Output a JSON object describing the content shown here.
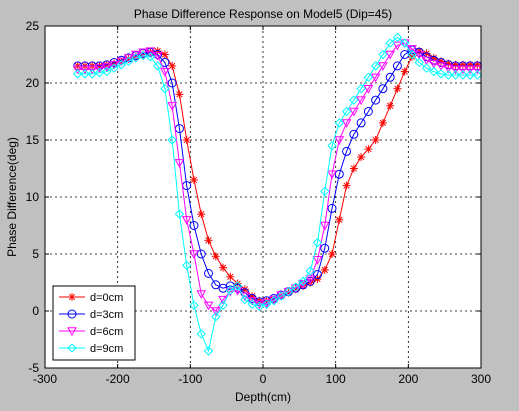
{
  "chart_data": {
    "type": "line",
    "title": "Phase Difference Response on Model5 (Dip=45)",
    "xlabel": "Depth(cm)",
    "ylabel": "Phase Difference(deg)",
    "xlim": [
      -300,
      300
    ],
    "ylim": [
      -5,
      25
    ],
    "xticks": [
      -300,
      -200,
      -100,
      0,
      100,
      200,
      300
    ],
    "yticks": [
      -5,
      0,
      5,
      10,
      15,
      20,
      25
    ],
    "grid": true,
    "legend_position": "bottom-left",
    "colors": {
      "background": "#c0c0c0",
      "axes_background": "#ffffff",
      "grid": "#000000"
    },
    "series": [
      {
        "name": "d=0cm",
        "color": "#ff0000",
        "marker": "asterisk",
        "x": [
          -255,
          -245,
          -235,
          -225,
          -215,
          -205,
          -195,
          -185,
          -175,
          -165,
          -155,
          -145,
          -135,
          -125,
          -115,
          -105,
          -95,
          -85,
          -75,
          -65,
          -55,
          -45,
          -35,
          -25,
          -15,
          -5,
          5,
          15,
          25,
          35,
          45,
          55,
          65,
          75,
          85,
          95,
          105,
          115,
          125,
          135,
          145,
          155,
          165,
          175,
          185,
          195,
          205,
          215,
          225,
          235,
          245,
          255,
          265,
          275,
          285,
          295
        ],
        "y": [
          21.5,
          21.5,
          21.5,
          21.5,
          21.6,
          21.7,
          21.9,
          22.1,
          22.3,
          22.5,
          22.7,
          22.8,
          22.5,
          21.5,
          19.0,
          15.0,
          11.5,
          8.5,
          6.2,
          4.8,
          3.8,
          3.0,
          2.4,
          1.9,
          1.3,
          0.9,
          0.9,
          1.0,
          1.3,
          1.6,
          1.9,
          2.2,
          2.5,
          2.8,
          3.6,
          5.0,
          8.0,
          11.0,
          12.5,
          13.5,
          14.2,
          15.0,
          16.5,
          18.0,
          19.5,
          21.0,
          22.3,
          22.8,
          22.6,
          22.2,
          21.9,
          21.7,
          21.6,
          21.6,
          21.6,
          21.6
        ]
      },
      {
        "name": "d=3cm",
        "color": "#0000ff",
        "marker": "circle",
        "x": [
          -255,
          -245,
          -235,
          -225,
          -215,
          -205,
          -195,
          -185,
          -175,
          -165,
          -155,
          -145,
          -135,
          -125,
          -115,
          -105,
          -95,
          -85,
          -75,
          -65,
          -55,
          -45,
          -35,
          -25,
          -15,
          -5,
          5,
          15,
          25,
          35,
          45,
          55,
          65,
          75,
          85,
          95,
          105,
          115,
          125,
          135,
          145,
          155,
          165,
          175,
          185,
          195,
          205,
          215,
          225,
          235,
          245,
          255,
          265,
          275,
          285,
          295
        ],
        "y": [
          21.5,
          21.5,
          21.5,
          21.5,
          21.6,
          21.8,
          22.0,
          22.2,
          22.4,
          22.6,
          22.7,
          22.5,
          21.8,
          20.0,
          16.0,
          11.0,
          7.5,
          5.0,
          3.3,
          2.3,
          2.0,
          2.2,
          2.0,
          1.6,
          1.1,
          0.8,
          0.9,
          1.1,
          1.4,
          1.7,
          2.0,
          2.3,
          2.6,
          3.2,
          5.5,
          9.0,
          12.0,
          14.0,
          15.5,
          16.5,
          17.5,
          18.5,
          19.5,
          20.5,
          21.5,
          22.5,
          22.9,
          22.7,
          22.3,
          22.0,
          21.8,
          21.6,
          21.5,
          21.5,
          21.5,
          21.5
        ]
      },
      {
        "name": "d=6cm",
        "color": "#ff00ff",
        "marker": "triangle-down",
        "x": [
          -255,
          -245,
          -235,
          -225,
          -215,
          -205,
          -195,
          -185,
          -175,
          -165,
          -155,
          -145,
          -135,
          -125,
          -115,
          -105,
          -95,
          -85,
          -75,
          -65,
          -55,
          -45,
          -35,
          -25,
          -15,
          -5,
          5,
          15,
          25,
          35,
          45,
          55,
          65,
          75,
          85,
          95,
          105,
          115,
          125,
          135,
          145,
          155,
          165,
          175,
          185,
          195,
          205,
          215,
          225,
          235,
          245,
          255,
          265,
          275,
          285,
          295
        ],
        "y": [
          21.2,
          21.2,
          21.2,
          21.3,
          21.4,
          21.6,
          21.9,
          22.2,
          22.5,
          22.7,
          22.8,
          22.4,
          21.0,
          18.0,
          13.0,
          8.0,
          5.0,
          1.5,
          0.5,
          0.0,
          1.0,
          1.7,
          1.8,
          1.3,
          0.9,
          0.6,
          0.7,
          1.0,
          1.4,
          1.7,
          2.0,
          2.4,
          2.8,
          4.5,
          7.5,
          12.0,
          15.0,
          16.5,
          17.5,
          18.5,
          19.5,
          20.5,
          21.5,
          22.5,
          23.3,
          23.5,
          23.0,
          22.5,
          22.0,
          21.7,
          21.5,
          21.3,
          21.2,
          21.2,
          21.2,
          21.2
        ]
      },
      {
        "name": "d=9cm",
        "color": "#00ffff",
        "marker": "diamond",
        "x": [
          -255,
          -245,
          -235,
          -225,
          -215,
          -205,
          -195,
          -185,
          -175,
          -165,
          -155,
          -145,
          -135,
          -125,
          -115,
          -105,
          -95,
          -85,
          -75,
          -65,
          -55,
          -45,
          -35,
          -25,
          -15,
          -5,
          5,
          15,
          25,
          35,
          45,
          55,
          65,
          75,
          85,
          95,
          105,
          115,
          125,
          135,
          145,
          155,
          165,
          175,
          185,
          195,
          205,
          215,
          225,
          235,
          245,
          255,
          265,
          275,
          285,
          295
        ],
        "y": [
          20.8,
          20.8,
          20.8,
          20.9,
          21.0,
          21.3,
          21.6,
          21.9,
          22.2,
          22.4,
          22.3,
          21.5,
          19.5,
          15.0,
          8.5,
          4.0,
          0.5,
          -2.0,
          -3.5,
          -0.5,
          0.5,
          1.8,
          2.2,
          1.0,
          0.6,
          0.4,
          0.6,
          0.9,
          1.3,
          1.7,
          2.1,
          2.6,
          3.5,
          6.0,
          10.5,
          14.5,
          16.5,
          17.5,
          18.5,
          19.5,
          20.5,
          21.5,
          22.5,
          23.5,
          24.0,
          23.5,
          22.5,
          21.8,
          21.3,
          21.0,
          20.8,
          20.7,
          20.7,
          20.7,
          20.7,
          20.7
        ]
      }
    ]
  }
}
